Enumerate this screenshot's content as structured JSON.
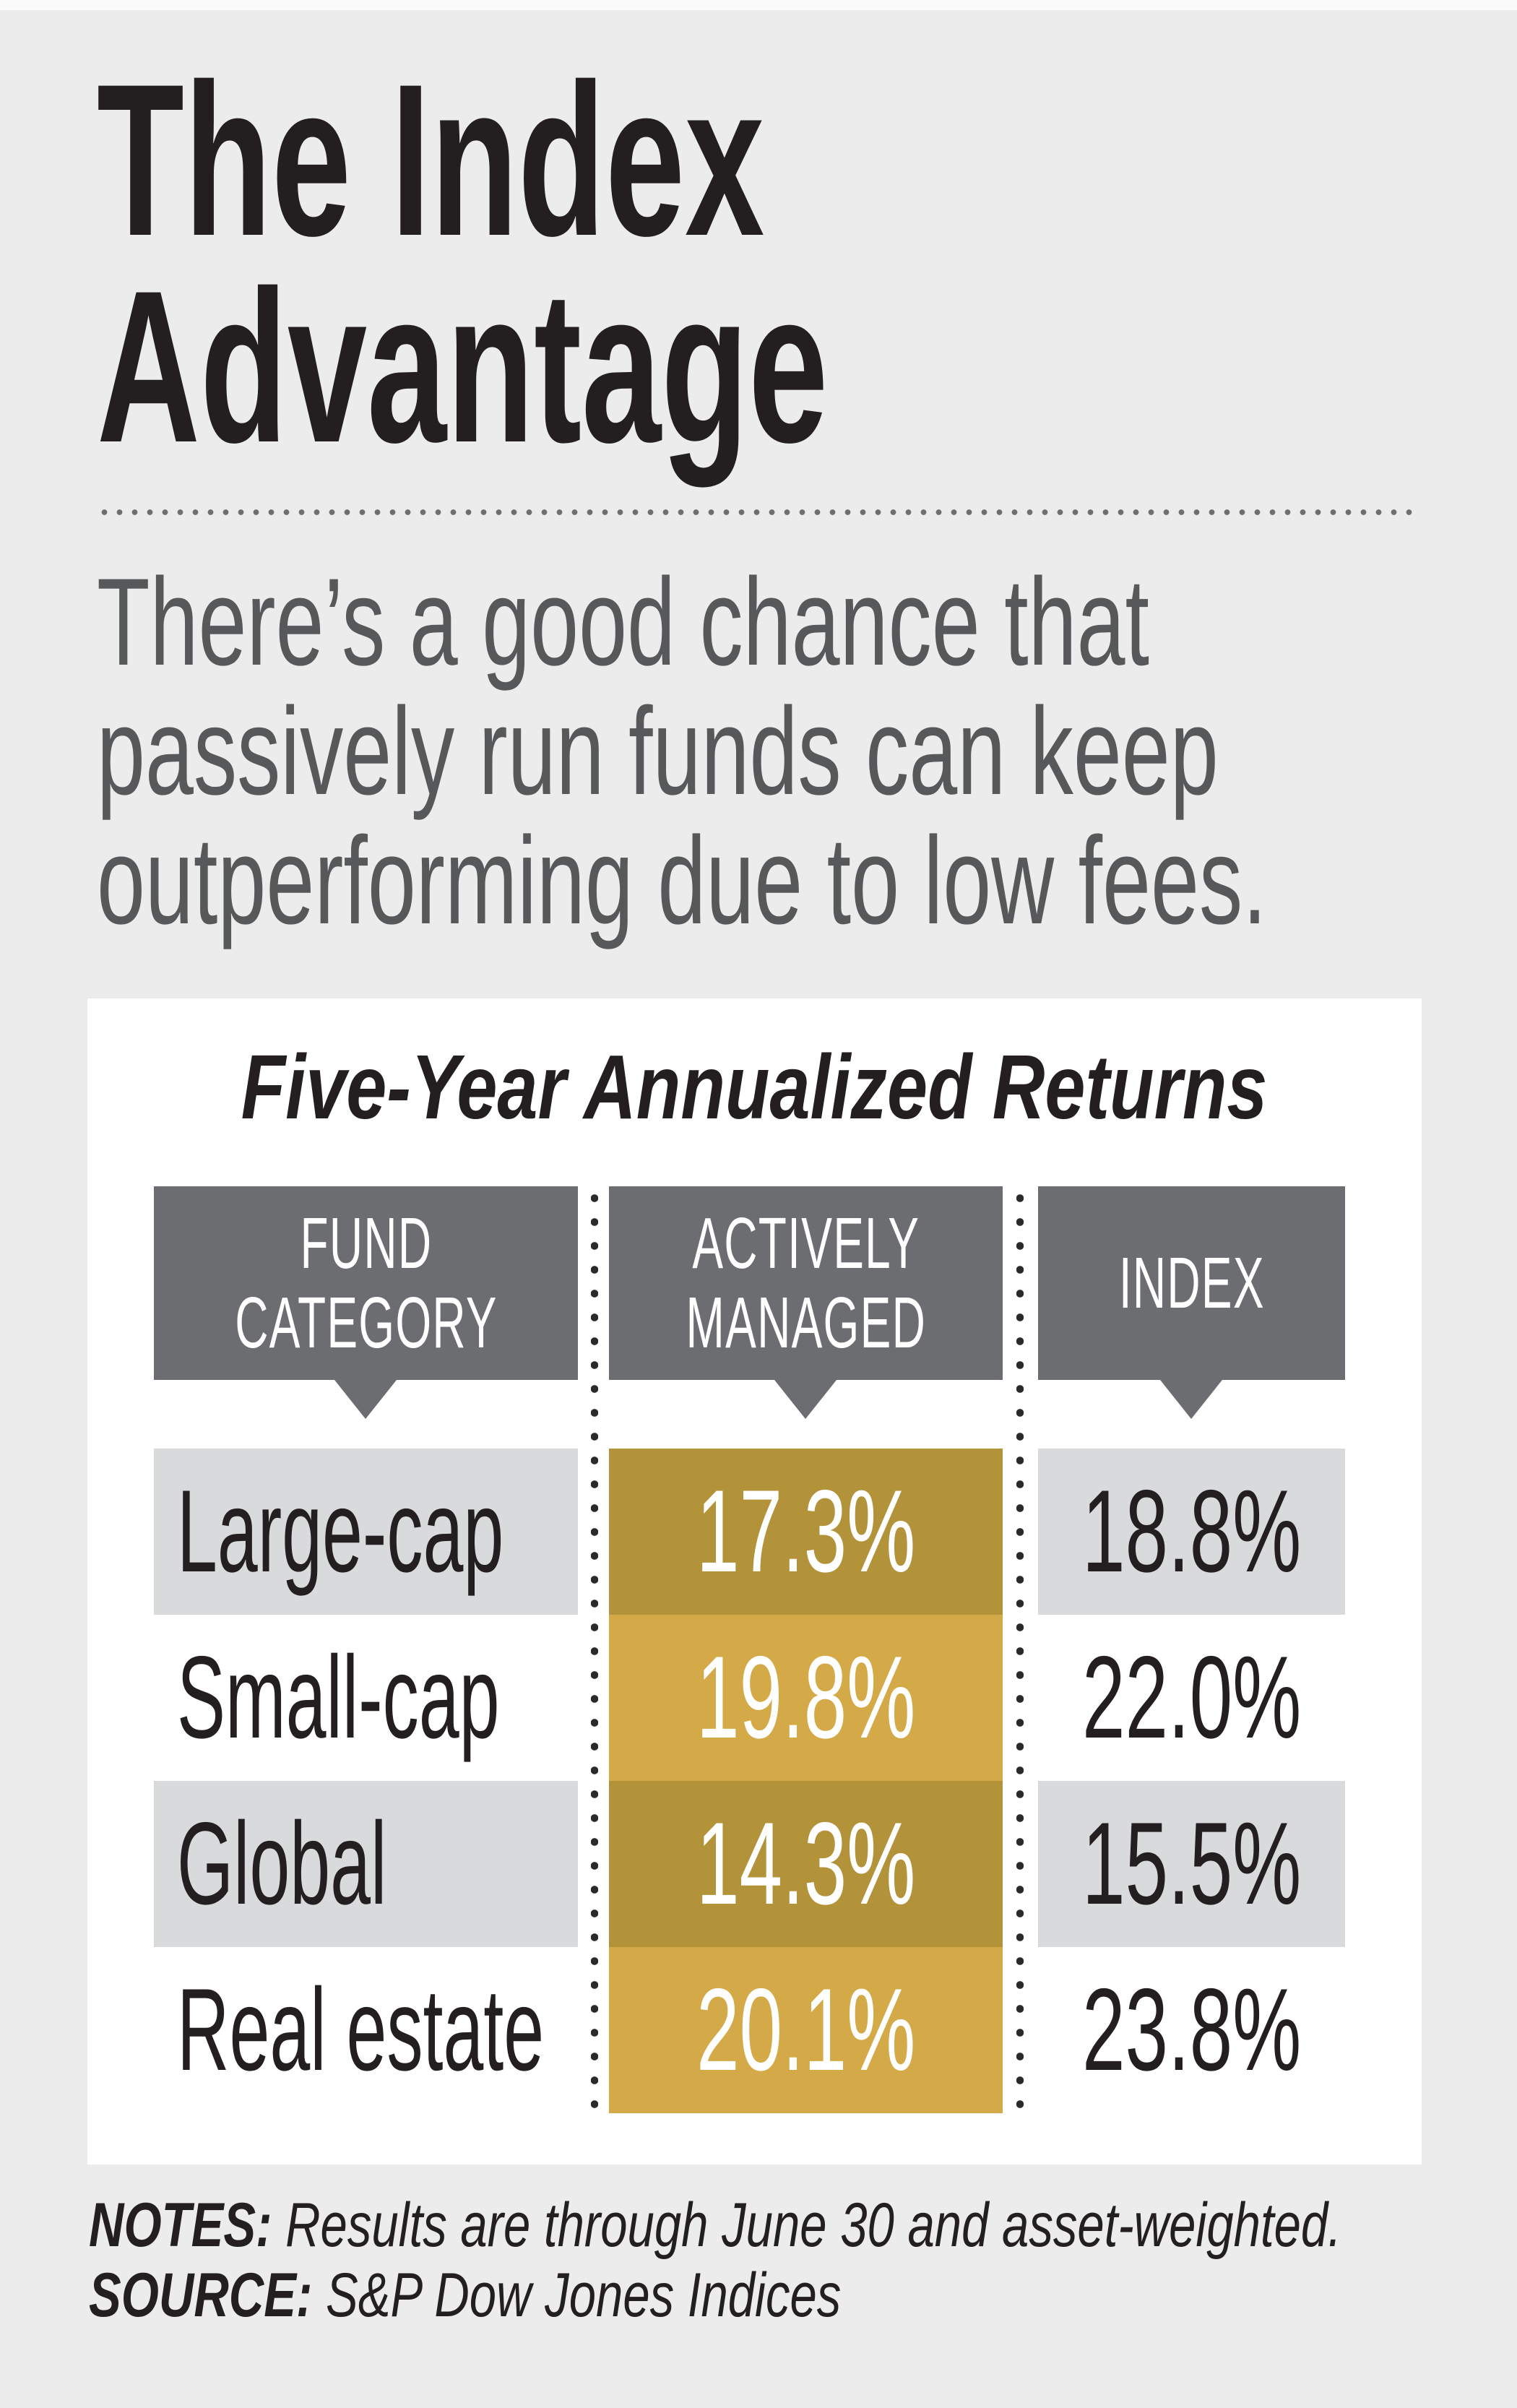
{
  "title": {
    "line1": "The Index",
    "line2": "Advantage"
  },
  "subtitle": {
    "line1": "There’s a good chance that",
    "line2": "passively run funds can keep",
    "line3": "outperforming due to low fees."
  },
  "table": {
    "title": "Five-Year Annualized Returns",
    "headers": [
      {
        "line1": "FUND",
        "line2": "CATEGORY"
      },
      {
        "line1": "ACTIVELY",
        "line2": "MANAGED"
      },
      {
        "line1": "INDEX",
        "line2": ""
      }
    ],
    "rows": [
      {
        "label": "Large-cap",
        "active": "17.3%",
        "index": "18.8%"
      },
      {
        "label": "Small-cap",
        "active": "19.8%",
        "index": "22.0%"
      },
      {
        "label": "Global",
        "active": "14.3%",
        "index": "15.5%"
      },
      {
        "label": "Real estate",
        "active": "20.1%",
        "index": "23.8%"
      }
    ]
  },
  "footer": {
    "notes_label": "NOTES:",
    "notes_text": " Results are through June 30 and asset-weighted.",
    "source_label": "SOURCE:",
    "source_text": " S&P Dow Jones Indices"
  },
  "colors": {
    "page_background": "#ececec",
    "card_background": "#ffffff",
    "header_gray": "#6c6d70",
    "stripe_gray": "#d9dadc",
    "gold_dark": "#b39339",
    "gold_light": "#d3aa47",
    "title_text": "#231f20",
    "subtitle_text": "#57585a",
    "value_text_on_gold": "#ffffff"
  },
  "chart_data": {
    "type": "table",
    "title": "Five-Year Annualized Returns",
    "columns": [
      "FUND CATEGORY",
      "ACTIVELY MANAGED",
      "INDEX"
    ],
    "categories": [
      "Large-cap",
      "Small-cap",
      "Global",
      "Real estate"
    ],
    "series": [
      {
        "name": "Actively managed",
        "values": [
          17.3,
          19.8,
          14.3,
          20.1
        ],
        "unit": "%"
      },
      {
        "name": "Index",
        "values": [
          18.8,
          22.0,
          15.5,
          23.8
        ],
        "unit": "%"
      }
    ],
    "notes": "Results are through June 30 and asset-weighted.",
    "source": "S&P Dow Jones Indices"
  }
}
